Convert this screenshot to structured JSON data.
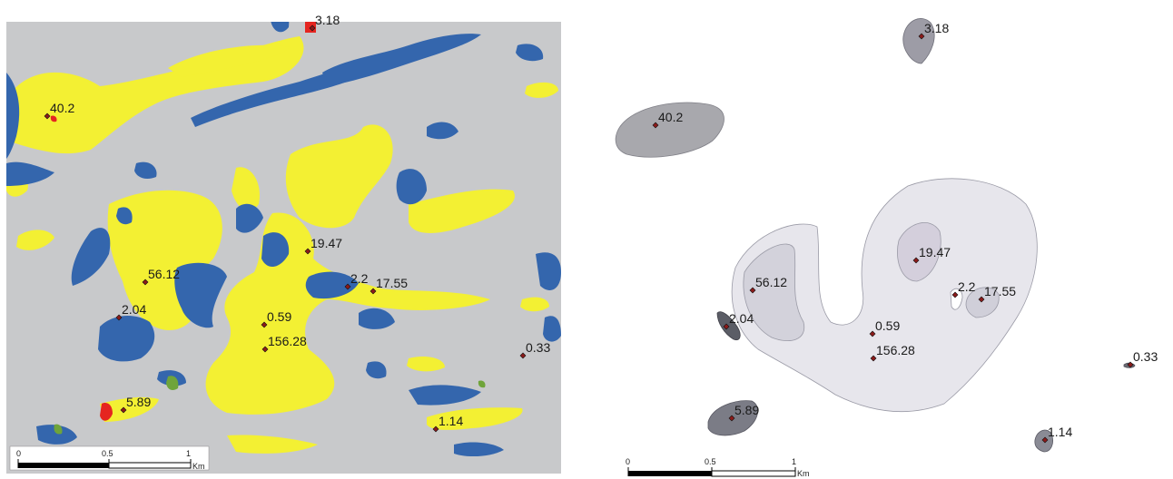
{
  "colors": {
    "background": "#c8c9cb",
    "yellow_class": "#f3f033",
    "blue_class": "#3466ad",
    "red_class": "#e52520",
    "green_class": "#6fa43a",
    "point_marker": "#8b1a1a"
  },
  "left_map": {
    "points": [
      {
        "label": "3.18"
      },
      {
        "label": "40.2"
      },
      {
        "label": "19.47"
      },
      {
        "label": "56.12"
      },
      {
        "label": "2.2"
      },
      {
        "label": "17.55"
      },
      {
        "label": "2.04"
      },
      {
        "label": "0.59"
      },
      {
        "label": "156.28"
      },
      {
        "label": "0.33"
      },
      {
        "label": "5.89"
      },
      {
        "label": "1.14"
      }
    ],
    "scalebar": {
      "ticks": [
        "0",
        "0.5",
        "1"
      ],
      "unit": "Km"
    }
  },
  "right_map": {
    "points": [
      {
        "label": "3.18"
      },
      {
        "label": "40.2"
      },
      {
        "label": "19.47"
      },
      {
        "label": "56.12"
      },
      {
        "label": "2.2"
      },
      {
        "label": "17.55"
      },
      {
        "label": "2.04"
      },
      {
        "label": "0.59"
      },
      {
        "label": "156.28"
      },
      {
        "label": "0.33"
      },
      {
        "label": "5.89"
      },
      {
        "label": "1.14"
      }
    ],
    "scalebar": {
      "ticks": [
        "0",
        "0.5",
        "1"
      ],
      "unit": "Km"
    }
  }
}
